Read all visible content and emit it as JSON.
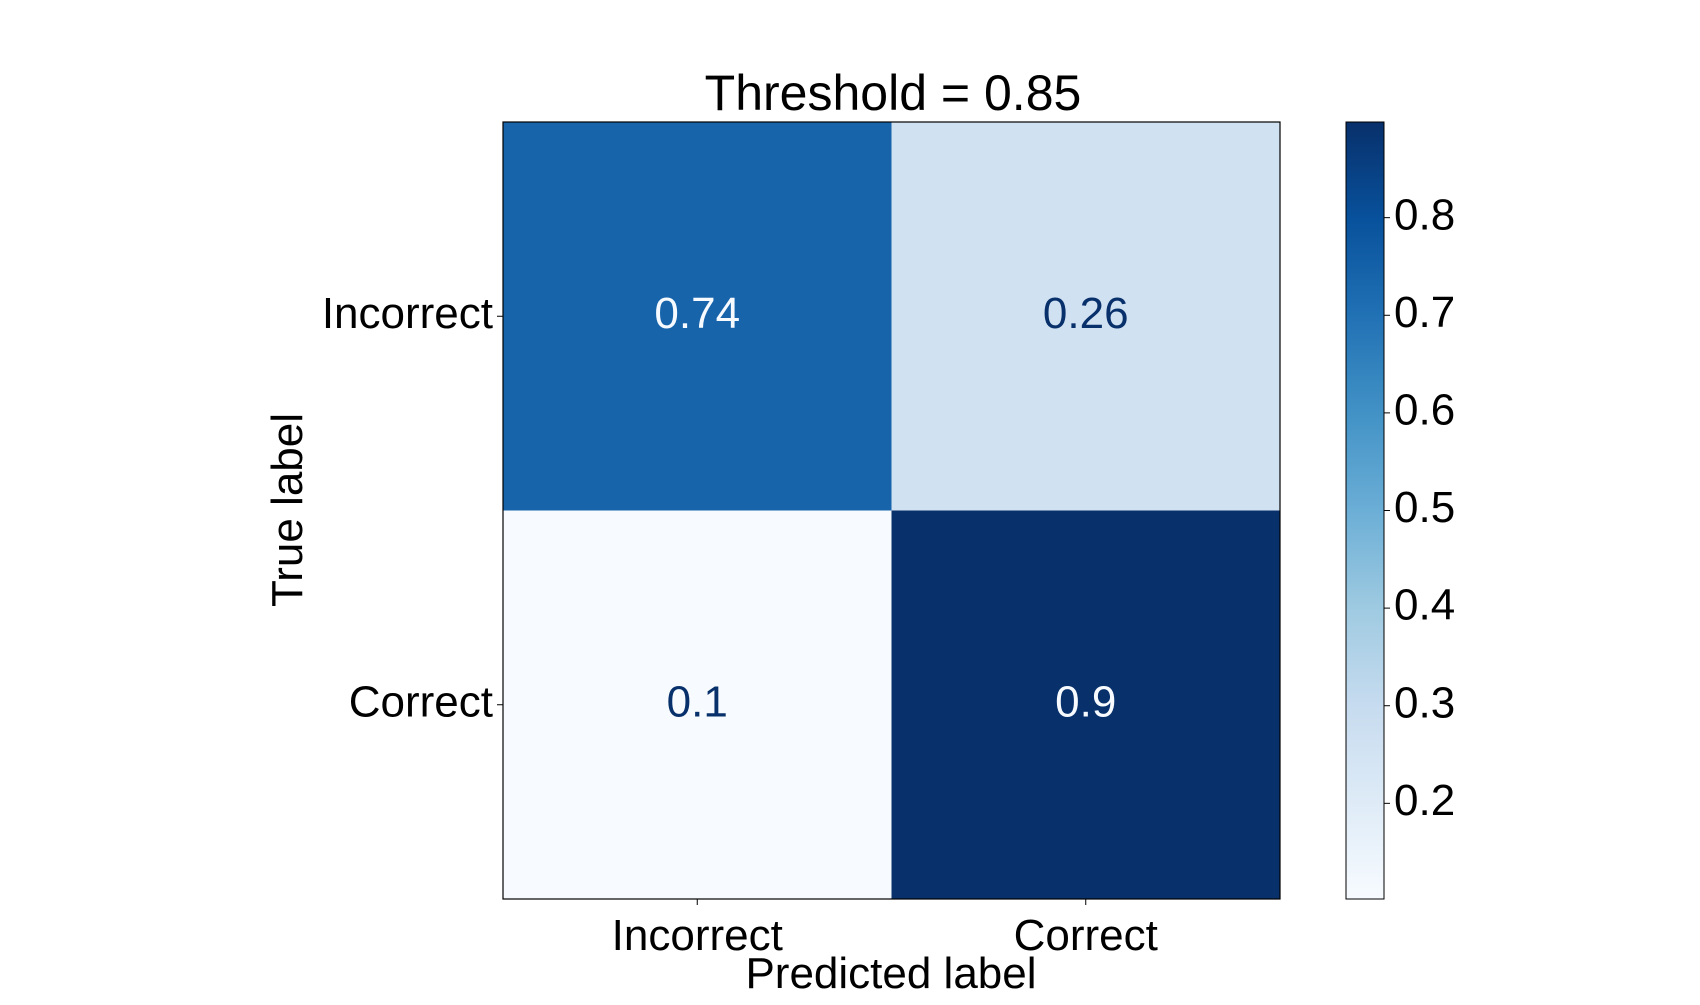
{
  "chart_data": {
    "type": "heatmap",
    "title": "Threshold = 0.85",
    "xlabel": "Predicted label",
    "ylabel": "True label",
    "x_categories": [
      "Incorrect",
      "Correct"
    ],
    "y_categories": [
      "Incorrect",
      "Correct"
    ],
    "values": [
      [
        0.74,
        0.26
      ],
      [
        0.1,
        0.9
      ]
    ],
    "value_labels": [
      [
        "0.74",
        "0.26"
      ],
      [
        "0.1",
        "0.9"
      ]
    ],
    "colormap": "Blues",
    "color_range": [
      0.1,
      0.9
    ],
    "colorbar": {
      "ticks": [
        0.2,
        0.3,
        0.4,
        0.5,
        0.6,
        0.7,
        0.8
      ],
      "tick_labels": [
        "0.2",
        "0.3",
        "0.4",
        "0.5",
        "0.6",
        "0.7",
        "0.8"
      ]
    },
    "grid": false
  }
}
